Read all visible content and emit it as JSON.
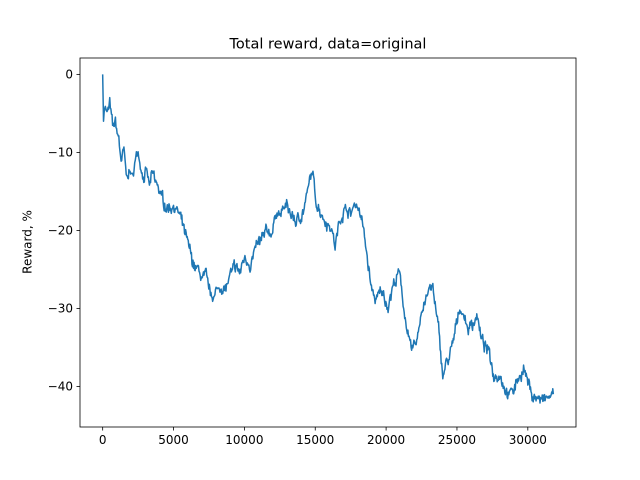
{
  "chart_data": {
    "type": "line",
    "title": "Total reward, data=original",
    "xlabel": "",
    "ylabel": "Reward, %",
    "xlim": [
      -1600,
      33400
    ],
    "ylim": [
      -45.2,
      2.1
    ],
    "grid": false,
    "legend": "none",
    "x_ticks": [
      0,
      5000,
      10000,
      15000,
      20000,
      25000,
      30000
    ],
    "y_ticks": [
      0,
      -10,
      -20,
      -30,
      -40
    ],
    "x_tick_labels": [
      "0",
      "5000",
      "10000",
      "15000",
      "20000",
      "25000",
      "30000"
    ],
    "y_tick_labels": [
      "0",
      "−10",
      "−20",
      "−30",
      "−40"
    ],
    "series": [
      {
        "color": "#1f77b4",
        "points": [
          [
            0,
            0
          ],
          [
            60,
            -6
          ],
          [
            150,
            -3.5
          ],
          [
            300,
            -5
          ],
          [
            500,
            -4
          ],
          [
            700,
            -7
          ],
          [
            900,
            -6.5
          ],
          [
            1100,
            -8
          ],
          [
            1300,
            -11
          ],
          [
            1500,
            -10
          ],
          [
            1700,
            -14
          ],
          [
            1850,
            -12
          ],
          [
            2050,
            -13.5
          ],
          [
            2300,
            -11
          ],
          [
            2500,
            -10
          ],
          [
            2700,
            -11.5
          ],
          [
            2900,
            -13
          ],
          [
            3100,
            -12.5
          ],
          [
            3300,
            -14.5
          ],
          [
            3500,
            -13
          ],
          [
            3700,
            -14
          ],
          [
            4000,
            -15
          ],
          [
            4300,
            -16.5
          ],
          [
            4600,
            -17
          ],
          [
            5000,
            -16.5
          ],
          [
            5400,
            -18
          ],
          [
            5700,
            -20
          ],
          [
            6000,
            -22
          ],
          [
            6300,
            -24
          ],
          [
            6600,
            -25
          ],
          [
            7000,
            -26
          ],
          [
            7300,
            -26.5
          ],
          [
            7600,
            -28.5
          ],
          [
            8000,
            -28
          ],
          [
            8400,
            -27
          ],
          [
            8700,
            -27.5
          ],
          [
            9000,
            -26
          ],
          [
            9400,
            -25
          ],
          [
            9700,
            -25.5
          ],
          [
            10000,
            -23.5
          ],
          [
            10400,
            -24
          ],
          [
            10800,
            -22.5
          ],
          [
            11200,
            -21.5
          ],
          [
            11600,
            -20.5
          ],
          [
            12000,
            -20
          ],
          [
            12300,
            -17
          ],
          [
            12500,
            -18
          ],
          [
            12900,
            -17
          ],
          [
            13300,
            -18
          ],
          [
            13700,
            -19
          ],
          [
            14000,
            -18
          ],
          [
            14300,
            -16.5
          ],
          [
            14600,
            -14
          ],
          [
            14800,
            -12.5
          ],
          [
            15000,
            -16
          ],
          [
            15300,
            -17
          ],
          [
            15700,
            -18.5
          ],
          [
            16000,
            -19
          ],
          [
            16200,
            -20
          ],
          [
            16400,
            -22
          ],
          [
            16600,
            -20
          ],
          [
            16900,
            -17.5
          ],
          [
            17200,
            -17
          ],
          [
            17500,
            -18
          ],
          [
            17800,
            -16.5
          ],
          [
            18100,
            -17
          ],
          [
            18400,
            -20
          ],
          [
            18700,
            -24
          ],
          [
            19000,
            -28
          ],
          [
            19300,
            -29
          ],
          [
            19700,
            -28
          ],
          [
            20100,
            -29.5
          ],
          [
            20500,
            -27
          ],
          [
            20900,
            -25.5
          ],
          [
            21200,
            -29
          ],
          [
            21500,
            -33
          ],
          [
            21800,
            -36
          ],
          [
            22200,
            -34
          ],
          [
            22500,
            -30
          ],
          [
            22900,
            -28
          ],
          [
            23300,
            -27.5
          ],
          [
            23700,
            -33
          ],
          [
            24000,
            -38.5
          ],
          [
            24300,
            -37
          ],
          [
            24700,
            -35
          ],
          [
            25000,
            -32
          ],
          [
            25200,
            -29.5
          ],
          [
            25500,
            -31
          ],
          [
            25800,
            -32.5
          ],
          [
            26100,
            -32
          ],
          [
            26400,
            -30.5
          ],
          [
            26700,
            -34
          ],
          [
            27000,
            -35
          ],
          [
            27300,
            -36
          ],
          [
            27600,
            -38.5
          ],
          [
            28000,
            -38
          ],
          [
            28300,
            -39.5
          ],
          [
            28700,
            -41
          ],
          [
            29000,
            -40.5
          ],
          [
            29300,
            -39
          ],
          [
            29700,
            -37.5
          ],
          [
            30000,
            -39.5
          ],
          [
            30300,
            -41
          ],
          [
            30700,
            -41.5
          ],
          [
            31100,
            -42
          ],
          [
            31500,
            -41.5
          ],
          [
            31800,
            -41
          ]
        ]
      }
    ]
  }
}
